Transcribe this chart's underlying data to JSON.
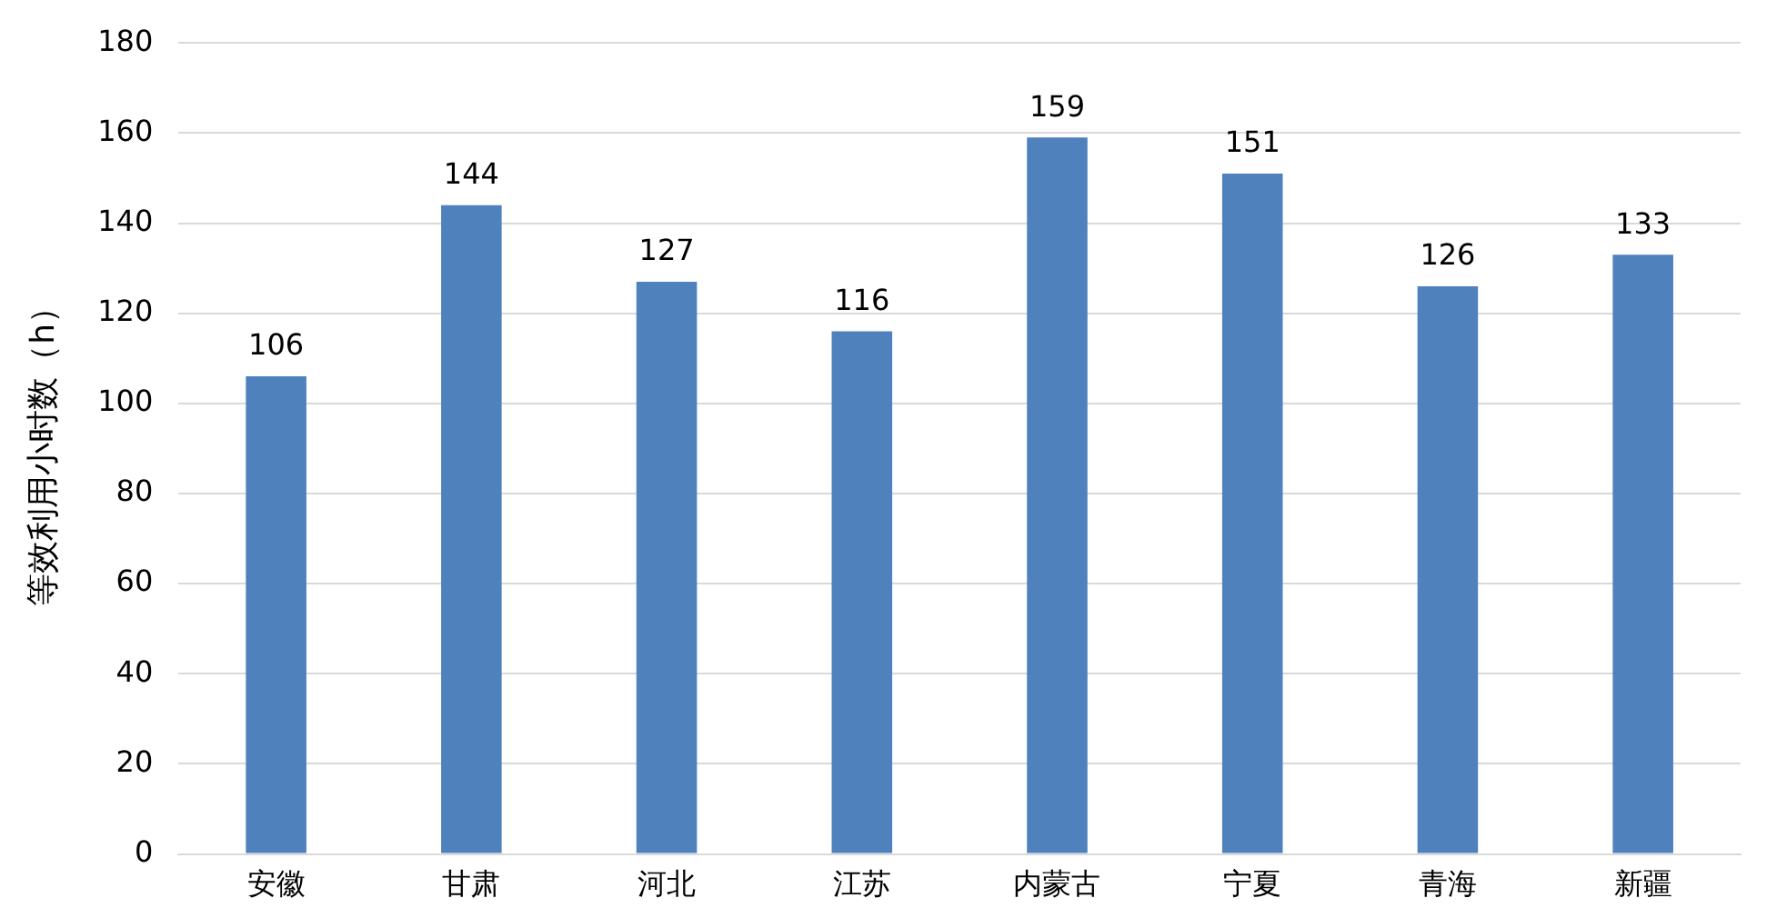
{
  "chart_data": {
    "type": "bar",
    "ylabel": "等效利用小时数（h）",
    "categories": [
      "安徽",
      "甘肃",
      "河北",
      "江苏",
      "内蒙古",
      "宁夏",
      "青海",
      "新疆"
    ],
    "values": [
      106,
      144,
      127,
      116,
      159,
      151,
      126,
      133
    ],
    "color": "#4f81bd",
    "ylim": [
      0,
      180
    ],
    "yticks": [
      0,
      20,
      40,
      60,
      80,
      100,
      120,
      140,
      160,
      180
    ],
    "grid": "y",
    "data_labels": true
  }
}
